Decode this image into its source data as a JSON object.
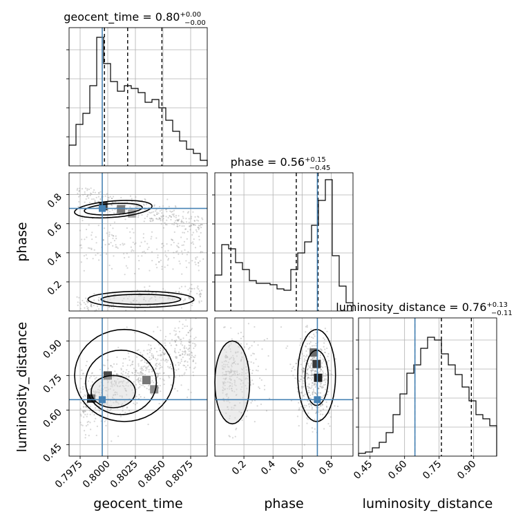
{
  "chart_data": {
    "type": "corner",
    "truth_color": "#4682b4",
    "parameters": [
      "geocent_time",
      "phase",
      "luminosity_distance"
    ],
    "truths": {
      "geocent_time": 0.7995,
      "phase": 0.705,
      "luminosity_distance": 0.645
    },
    "panels": {
      "geocent_time": {
        "title": "geocent_time = 0.80",
        "sup": "+0.00",
        "sub": "−0.00",
        "range": [
          0.7965,
          0.809
        ],
        "quantiles": [
          0.7997,
          0.8018,
          0.8049
        ],
        "hist": [
          0.15,
          0.3,
          0.38,
          0.58,
          0.93,
          0.74,
          0.61,
          0.54,
          0.58,
          0.56,
          0.53,
          0.46,
          0.48,
          0.42,
          0.33,
          0.25,
          0.18,
          0.12,
          0.09,
          0.04
        ],
        "ticks": [
          0.7975,
          0.8,
          0.8025,
          0.805,
          0.8075
        ],
        "tick_labels": [
          "0.7975",
          "0.8000",
          "0.8025",
          "0.8050",
          "0.8075"
        ],
        "xlabel": "geocent_time"
      },
      "phase": {
        "title": "phase = 0.56",
        "sup": "+0.15",
        "sub": "−0.45",
        "range": [
          0.0,
          0.95
        ],
        "quantiles": [
          0.11,
          0.56,
          0.71
        ],
        "hist": [
          0.26,
          0.48,
          0.45,
          0.35,
          0.3,
          0.22,
          0.2,
          0.2,
          0.19,
          0.16,
          0.15,
          0.3,
          0.42,
          0.5,
          0.62,
          0.8,
          0.95,
          0.4,
          0.18,
          0.06
        ],
        "ticks": [
          0.2,
          0.4,
          0.6,
          0.8
        ],
        "tick_labels": [
          "0.2",
          "0.4",
          "0.6",
          "0.8"
        ],
        "ytick_labels": [
          "0.2",
          "0.4",
          "0.6",
          "0.8"
        ],
        "xlabel": "phase",
        "ylabel": "phase"
      },
      "luminosity_distance": {
        "title": "luminosity_distance = 0.76",
        "sup": "+0.13",
        "sub": "−0.11",
        "range": [
          0.4,
          1.0
        ],
        "quantiles": [
          0.645,
          0.76,
          0.89
        ],
        "hist": [
          0.02,
          0.03,
          0.06,
          0.1,
          0.17,
          0.3,
          0.45,
          0.6,
          0.66,
          0.78,
          0.86,
          0.84,
          0.74,
          0.66,
          0.59,
          0.5,
          0.4,
          0.3,
          0.27,
          0.22
        ],
        "ticks": [
          0.45,
          0.6,
          0.75,
          0.9
        ],
        "tick_labels": [
          "0.45",
          "0.60",
          "0.75",
          "0.90"
        ],
        "ytick_labels": [
          "0.45",
          "0.60",
          "0.75",
          "0.90"
        ],
        "xlabel": "luminosity_distance",
        "ylabel": "luminosity_distance"
      }
    }
  }
}
